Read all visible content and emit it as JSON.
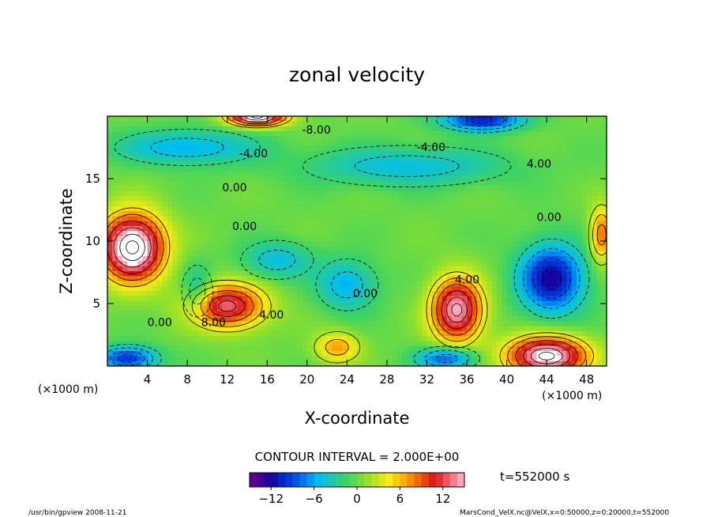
{
  "chart_data": {
    "type": "heatmap",
    "title": "zonal velocity",
    "xlabel": "X-coordinate",
    "ylabel": "Z-coordinate",
    "x_units_left": "(×1000 m)",
    "x_units_right": "(×1000 m)",
    "xlim": [
      0,
      50
    ],
    "ylim": [
      0,
      20
    ],
    "x_ticks": [
      4,
      8,
      12,
      16,
      20,
      24,
      28,
      32,
      36,
      40,
      44,
      48
    ],
    "y_ticks": [
      5,
      10,
      15
    ],
    "contour_interval_text": "CONTOUR INTERVAL = 2.000E+00",
    "time_text": "t=552000 s",
    "colorbar": {
      "vmin": -15,
      "vmax": 15,
      "tick_values": [
        -12,
        -6,
        0,
        6,
        12
      ],
      "tick_labels": [
        "−12",
        "−6",
        "0",
        "6",
        "12"
      ]
    },
    "contour_labels": [
      {
        "text": "-8.00",
        "x": 19.5,
        "y": 18.6
      },
      {
        "text": "-4.00",
        "x": 13.2,
        "y": 16.7
      },
      {
        "text": "-4.00",
        "x": 31.0,
        "y": 17.2
      },
      {
        "text": "4.00",
        "x": 42.0,
        "y": 15.9
      },
      {
        "text": "0.00",
        "x": 11.5,
        "y": 14.0
      },
      {
        "text": "0.00",
        "x": 43.0,
        "y": 11.6
      },
      {
        "text": "0.00",
        "x": 12.5,
        "y": 10.9
      },
      {
        "text": "0.00",
        "x": 24.6,
        "y": 5.5
      },
      {
        "text": "4.00",
        "x": 34.8,
        "y": 6.6
      },
      {
        "text": "0.00",
        "x": 4.0,
        "y": 3.2
      },
      {
        "text": "8.00",
        "x": 9.4,
        "y": 3.2
      },
      {
        "text": "4.00",
        "x": 15.2,
        "y": 3.8
      }
    ],
    "features": [
      {
        "sign": "max",
        "x": 2.5,
        "y": 9.5,
        "amp": 19,
        "sx": 3.2,
        "sy": 2.7
      },
      {
        "sign": "max",
        "x": 12.0,
        "y": 4.8,
        "amp": 13,
        "sx": 3.8,
        "sy": 1.8
      },
      {
        "sign": "max",
        "x": 35.0,
        "y": 4.5,
        "amp": 15,
        "sx": 2.6,
        "sy": 2.6
      },
      {
        "sign": "max",
        "x": 44.0,
        "y": 0.8,
        "amp": 17,
        "sx": 4.0,
        "sy": 1.6
      },
      {
        "sign": "max",
        "x": 23.0,
        "y": 1.5,
        "amp": 7,
        "sx": 2.2,
        "sy": 1.2
      },
      {
        "sign": "max",
        "x": 49.5,
        "y": 10.5,
        "amp": 9,
        "sx": 1.2,
        "sy": 2.2
      },
      {
        "sign": "max",
        "x": 15.0,
        "y": 20.0,
        "amp": 17,
        "sx": 3.0,
        "sy": 0.8
      },
      {
        "sign": "min",
        "x": 44.5,
        "y": 7.0,
        "amp": -12,
        "sx": 3.3,
        "sy": 2.8
      },
      {
        "sign": "min",
        "x": 37.5,
        "y": 19.7,
        "amp": -11,
        "sx": 4.0,
        "sy": 0.9
      },
      {
        "sign": "min",
        "x": 8.0,
        "y": 17.5,
        "amp": -6,
        "sx": 7.0,
        "sy": 1.4
      },
      {
        "sign": "min",
        "x": 30.0,
        "y": 16.0,
        "amp": -5,
        "sx": 10.0,
        "sy": 1.6
      },
      {
        "sign": "min",
        "x": 2.0,
        "y": 0.6,
        "amp": -10,
        "sx": 3.0,
        "sy": 1.0
      },
      {
        "sign": "min",
        "x": 34.0,
        "y": 0.6,
        "amp": -9,
        "sx": 3.0,
        "sy": 0.9
      },
      {
        "sign": "min",
        "x": 24.0,
        "y": 6.5,
        "amp": -6,
        "sx": 3.0,
        "sy": 2.0
      },
      {
        "sign": "min",
        "x": 17.0,
        "y": 8.5,
        "amp": -5,
        "sx": 3.5,
        "sy": 1.5
      },
      {
        "sign": "min",
        "x": 9.0,
        "y": 6.0,
        "amp": -5,
        "sx": 1.5,
        "sy": 2.0
      }
    ]
  },
  "footer": {
    "program": "/usr/bin/gpview   2008-11-21",
    "source": "MarsCond_VelX.nc@VelX,x=0:50000,z=0:20000,t=552000"
  }
}
